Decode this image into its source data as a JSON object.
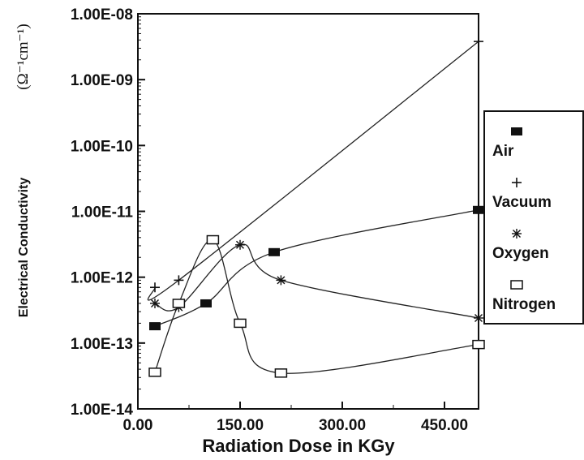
{
  "chart_data": {
    "type": "scatter",
    "xlabel": "Radiation Dose in KGy",
    "ylabel": "Electrical Conductivity",
    "ylabel_unit": "(Ω⁻¹cm⁻¹)",
    "y_scale": "log",
    "xlim": [
      0,
      500
    ],
    "ylim": [
      1e-14,
      1e-08
    ],
    "x_ticks": [
      0,
      150,
      300,
      450
    ],
    "x_tick_labels": [
      "0.00",
      "150.00",
      "300.00",
      "450.00"
    ],
    "y_ticks": [
      1e-14,
      1e-13,
      1e-12,
      1e-11,
      1e-10,
      1e-09,
      1e-08
    ],
    "y_tick_labels": [
      "1.00E-14",
      "1.00E-13",
      "1.00E-12",
      "1.00E-11",
      "1.00E-10",
      "1.00E-09",
      "1.00E-08"
    ],
    "legend_position": "right",
    "series": [
      {
        "name": "Air",
        "marker": "filled-rect",
        "x": [
          25,
          100,
          200,
          500
        ],
        "y": [
          1.8e-13,
          4e-13,
          2.4e-12,
          1.05e-11
        ]
      },
      {
        "name": "Vacuum",
        "marker": "plus",
        "x": [
          25,
          60,
          500
        ],
        "y": [
          7e-13,
          9e-13,
          3.8e-09
        ]
      },
      {
        "name": "Oxygen",
        "marker": "asterisk",
        "x": [
          25,
          60,
          150,
          210,
          500
        ],
        "y": [
          4e-13,
          3.5e-13,
          3.1e-12,
          9e-13,
          2.4e-13
        ]
      },
      {
        "name": "Nitrogen",
        "marker": "open-square",
        "x": [
          25,
          60,
          110,
          150,
          210,
          500
        ],
        "y": [
          3.6e-14,
          4e-13,
          3.7e-12,
          2e-13,
          3.5e-14,
          9.5e-14
        ]
      }
    ]
  }
}
